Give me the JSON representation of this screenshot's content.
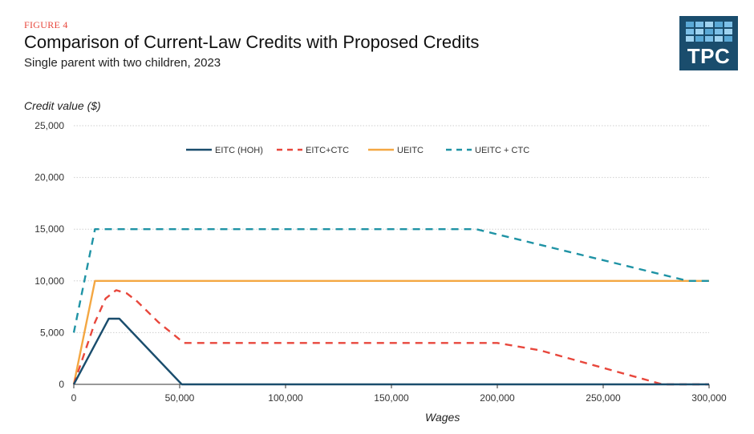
{
  "header": {
    "figure_label": "FIGURE 4",
    "title": "Comparison of Current-Law Credits with Proposed Credits",
    "subtitle": "Single parent with two children, 2023"
  },
  "logo": {
    "text": "TPC"
  },
  "colors": {
    "logo_bg": "#1a4d6d",
    "logo_cells": [
      "#5aa9d6",
      "#7cc0e8",
      "#9fd3f0"
    ],
    "grid": "#cfcfcf",
    "axis": "#333333"
  },
  "chart_data": {
    "type": "line",
    "title": "Comparison of Current-Law Credits with Proposed Credits",
    "subtitle": "Single parent with two children, 2023",
    "xlabel": "Wages",
    "ylabel": "Credit value ($)",
    "xlim": [
      0,
      300000
    ],
    "ylim": [
      0,
      25000
    ],
    "xticks": [
      0,
      50000,
      100000,
      150000,
      200000,
      250000,
      300000
    ],
    "xtick_labels": [
      "0",
      "50,000",
      "100,000",
      "150,000",
      "200,000",
      "250,000",
      "300,000"
    ],
    "yticks": [
      0,
      5000,
      10000,
      15000,
      20000,
      25000
    ],
    "ytick_labels": [
      "0",
      "5,000",
      "10,000",
      "15,000",
      "20,000",
      "25,000"
    ],
    "grid": "horizontal",
    "legend_position": "top-center",
    "series": [
      {
        "name": "EITC (HOH)",
        "color": "#1a4d6d",
        "dash": "solid",
        "x": [
          0,
          16500,
          21500,
          51000,
          300000
        ],
        "y": [
          0,
          6350,
          6350,
          0,
          0
        ]
      },
      {
        "name": "EITC+CTC",
        "color": "#e8473c",
        "dash": "dashed",
        "x": [
          0,
          5000,
          10000,
          15000,
          20000,
          25000,
          30000,
          40000,
          52000,
          200000,
          220000,
          278000,
          300000
        ],
        "y": [
          0,
          3000,
          6000,
          8300,
          9100,
          8800,
          8000,
          6000,
          4000,
          4000,
          3300,
          0,
          0
        ]
      },
      {
        "name": "UEITC",
        "color": "#f4a742",
        "dash": "solid",
        "x": [
          0,
          10000,
          300000
        ],
        "y": [
          0,
          10000,
          10000
        ]
      },
      {
        "name": "UEITC + CTC",
        "color": "#1f93a5",
        "dash": "dashed",
        "x": [
          0,
          10000,
          190000,
          290000,
          300000
        ],
        "y": [
          5000,
          15000,
          15000,
          10000,
          10000
        ]
      }
    ]
  }
}
